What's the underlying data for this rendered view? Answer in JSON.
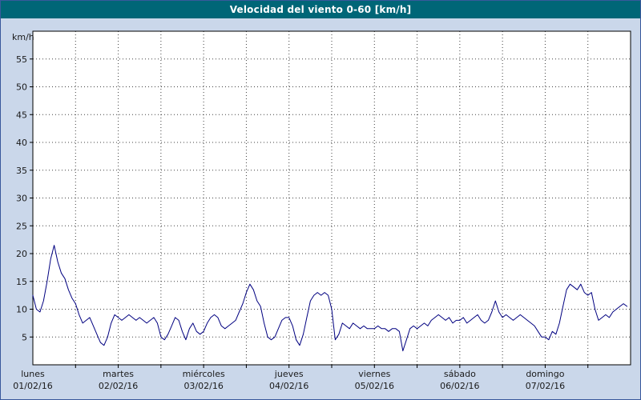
{
  "title_bar": {
    "title": "Velocidad del viento 0-60 [km/h]",
    "bg": "#006677",
    "fg": "#ffffff"
  },
  "colors": {
    "page_bg": "#cad7ea",
    "outer_border": "#39589c",
    "plot_bg": "#ffffff",
    "axis": "#000000",
    "grid": "#404040",
    "line": "#000080"
  },
  "chart_data": {
    "type": "line",
    "title": "Velocidad del viento 0-60 [km/h]",
    "ylabel": "km/h",
    "xlabel": "",
    "ylim": [
      0,
      60
    ],
    "ytick_step": 5,
    "ytick_labels": [
      "5",
      "10",
      "15",
      "20",
      "25",
      "30",
      "35",
      "40",
      "45",
      "50",
      "55"
    ],
    "grid": {
      "horizontal": true,
      "vertical": true,
      "style": "dotted",
      "vertical_step_hours": 12
    },
    "legend_position": "none",
    "x_unit": "hours",
    "hours_per_point": 1,
    "days": [
      {
        "name": "lunes",
        "date": "01/02/16"
      },
      {
        "name": "martes",
        "date": "02/02/16"
      },
      {
        "name": "miércoles",
        "date": "03/02/16"
      },
      {
        "name": "jueves",
        "date": "04/02/16"
      },
      {
        "name": "viernes",
        "date": "05/02/16"
      },
      {
        "name": "sábado",
        "date": "06/02/16"
      },
      {
        "name": "domingo",
        "date": "07/02/16"
      }
    ],
    "series": [
      {
        "name": "velocidad_viento_kmh",
        "color": "#000080",
        "values": [
          12.5,
          10,
          9.5,
          11.5,
          15,
          19,
          21.5,
          18.5,
          16.5,
          15.5,
          13.5,
          12,
          11,
          9,
          7.5,
          8,
          8.5,
          7,
          5.5,
          4,
          3.5,
          5,
          7.5,
          9,
          8.5,
          8,
          8.5,
          9,
          8.5,
          8,
          8.5,
          8,
          7.5,
          8,
          8.5,
          7.5,
          5,
          4.5,
          5.5,
          7,
          8.5,
          8,
          6,
          4.5,
          6.5,
          7.5,
          6,
          5.5,
          6,
          7.5,
          8.5,
          9,
          8.5,
          7,
          6.5,
          7,
          7.5,
          8,
          9.5,
          11,
          13,
          14.5,
          13.5,
          11.5,
          10.5,
          7.5,
          5,
          4.5,
          5,
          6.5,
          8,
          8.5,
          8.5,
          7,
          4.5,
          3.5,
          5.5,
          8.5,
          11.5,
          12.5,
          13,
          12.5,
          13,
          12.5,
          10,
          4.5,
          5.5,
          7.5,
          7,
          6.5,
          7.5,
          7,
          6.5,
          7,
          6.5,
          6.5,
          6.5,
          7,
          6.5,
          6.5,
          6,
          6.5,
          6.5,
          6,
          2.5,
          4.5,
          6.5,
          7,
          6.5,
          7,
          7.5,
          7,
          8,
          8.5,
          9,
          8.5,
          8,
          8.5,
          7.5,
          8,
          8,
          8.5,
          7.5,
          8,
          8.5,
          9,
          8,
          7.5,
          8,
          9.5,
          11.5,
          9.5,
          8.5,
          9,
          8.5,
          8,
          8.5,
          9,
          8.5,
          8,
          7.5,
          7,
          6,
          5,
          5,
          4.5,
          6,
          5.5,
          7.5,
          10.5,
          13.5,
          14.5,
          14,
          13.5,
          14.5,
          13,
          12.5,
          13,
          10,
          8,
          8.5,
          9,
          8.5,
          9.5,
          10,
          10.5,
          11,
          10.5
        ]
      }
    ]
  }
}
